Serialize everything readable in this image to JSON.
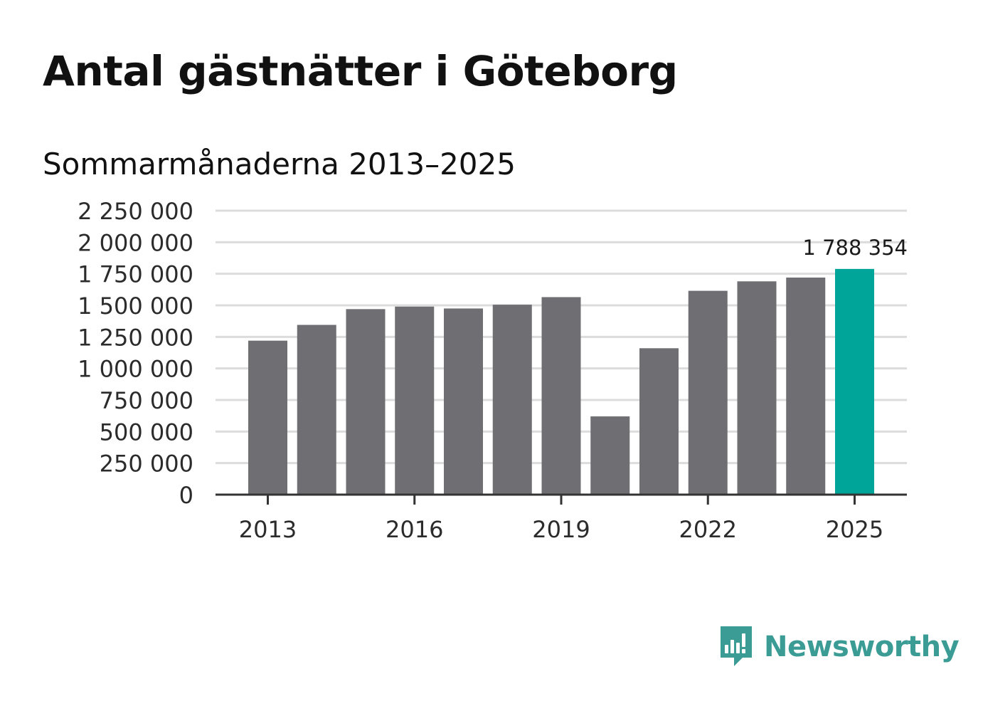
{
  "title": "Antal gästnätter i Göteborg",
  "subtitle": "Sommarmånaderna 2013–2025",
  "brand": {
    "name": "Newsworthy",
    "icon": "newsworthy-logo-icon",
    "color": "#3a9c94"
  },
  "colors": {
    "bar": "#6f6e73",
    "highlight": "#00a599",
    "grid": "#dcdcdc",
    "axis": "#333333"
  },
  "chart_data": {
    "type": "bar",
    "categories": [
      "2013",
      "2014",
      "2015",
      "2016",
      "2017",
      "2018",
      "2019",
      "2020",
      "2021",
      "2022",
      "2023",
      "2024",
      "2025"
    ],
    "values": [
      1220000,
      1345000,
      1470000,
      1490000,
      1475000,
      1505000,
      1565000,
      620000,
      1160000,
      1615000,
      1690000,
      1720000,
      1788354
    ],
    "highlight_index": 12,
    "x_tick_labels": [
      "2013",
      "2016",
      "2019",
      "2022",
      "2025"
    ],
    "y_ticks": [
      0,
      250000,
      500000,
      750000,
      1000000,
      1250000,
      1500000,
      1750000,
      2000000,
      2250000
    ],
    "y_tick_labels": [
      "0",
      "250 000",
      "500 000",
      "750 000",
      "1 000 000",
      "1 250 000",
      "1 500 000",
      "1 750 000",
      "2 000 000",
      "2 250 000"
    ],
    "ylim": [
      0,
      2250000
    ],
    "grid": true,
    "data_labels": [
      {
        "index": 12,
        "text": "1 788 354"
      }
    ]
  }
}
